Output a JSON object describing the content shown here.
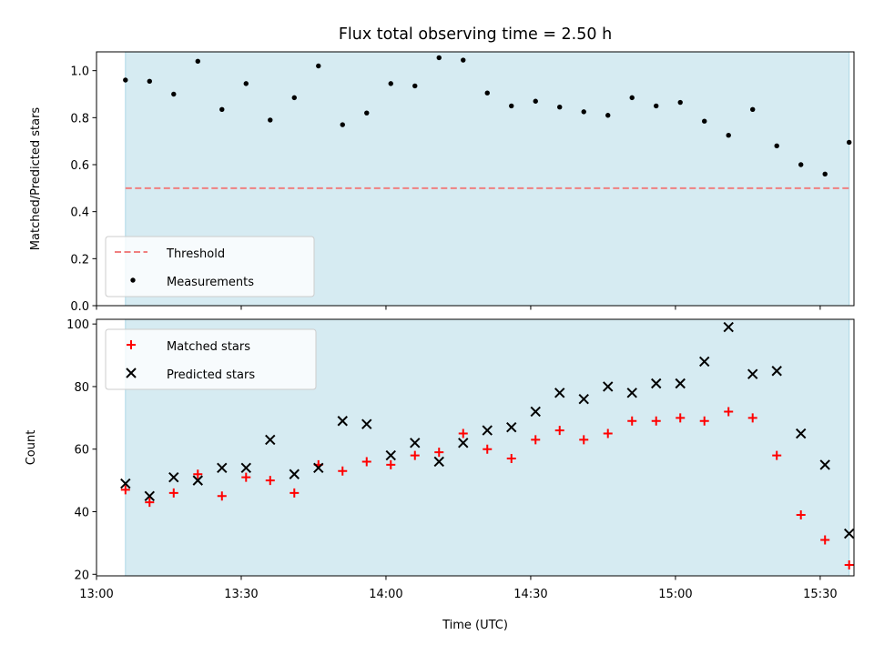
{
  "title": "Flux total observing time = 2.50 h",
  "x_tick_labels": [
    "13:00",
    "13:30",
    "14:00",
    "14:30",
    "15:00",
    "15:30"
  ],
  "colors": {
    "shade": "#add8e6",
    "threshold": "#f08080",
    "measurement": "#000000",
    "matched": "#ff0000",
    "predicted": "#000000"
  },
  "chart_data": [
    {
      "type": "scatter",
      "ylabel": "Matched/Predicted stars",
      "xlabel": "",
      "x_unit": "time (UTC)",
      "xlim": [
        "13:00",
        "15:37"
      ],
      "ylim": [
        0.0,
        1.08
      ],
      "y_tick_labels": [
        "0.0",
        "0.2",
        "0.4",
        "0.6",
        "0.8",
        "1.0"
      ],
      "shaded_span": [
        "13:06",
        "15:36"
      ],
      "legend": {
        "position": "lower-left",
        "entries": [
          "Threshold",
          "Measurements"
        ]
      },
      "threshold": {
        "name": "Threshold",
        "value": 0.5,
        "style": "dashed"
      },
      "series": [
        {
          "name": "Measurements",
          "marker": "dot",
          "x": [
            "13:06",
            "13:11",
            "13:16",
            "13:21",
            "13:26",
            "13:31",
            "13:36",
            "13:41",
            "13:46",
            "13:51",
            "13:56",
            "14:01",
            "14:06",
            "14:11",
            "14:16",
            "14:21",
            "14:26",
            "14:31",
            "14:36",
            "14:41",
            "14:46",
            "14:51",
            "14:56",
            "15:01",
            "15:06",
            "15:11",
            "15:16",
            "15:21",
            "15:26",
            "15:31",
            "15:36"
          ],
          "y": [
            0.96,
            0.955,
            0.9,
            1.04,
            0.835,
            0.945,
            0.79,
            0.885,
            1.02,
            0.77,
            0.82,
            0.945,
            0.935,
            1.055,
            1.045,
            0.905,
            0.85,
            0.87,
            0.845,
            0.825,
            0.81,
            0.885,
            0.85,
            0.865,
            0.785,
            0.725,
            0.835,
            0.68,
            0.6,
            0.56,
            0.695
          ]
        }
      ]
    },
    {
      "type": "scatter",
      "ylabel": "Count",
      "xlabel": "Time (UTC)",
      "xlim": [
        "13:00",
        "15:37"
      ],
      "ylim": [
        19.5,
        101.5
      ],
      "y_tick_labels": [
        "20",
        "40",
        "60",
        "80",
        "100"
      ],
      "shaded_span": [
        "13:06",
        "15:36"
      ],
      "legend": {
        "position": "upper-left",
        "entries": [
          "Matched stars",
          "Predicted stars"
        ]
      },
      "series": [
        {
          "name": "Matched stars",
          "marker": "plus",
          "x": [
            "13:06",
            "13:11",
            "13:16",
            "13:21",
            "13:26",
            "13:31",
            "13:36",
            "13:41",
            "13:46",
            "13:51",
            "13:56",
            "14:01",
            "14:06",
            "14:11",
            "14:16",
            "14:21",
            "14:26",
            "14:31",
            "14:36",
            "14:41",
            "14:46",
            "14:51",
            "14:56",
            "15:01",
            "15:06",
            "15:11",
            "15:16",
            "15:21",
            "15:26",
            "15:31",
            "15:36"
          ],
          "y": [
            47,
            43,
            46,
            52,
            45,
            51,
            50,
            46,
            55,
            53,
            56,
            55,
            58,
            59,
            65,
            60,
            57,
            63,
            66,
            63,
            65,
            69,
            69,
            70,
            69,
            72,
            70,
            58,
            39,
            31,
            23
          ]
        },
        {
          "name": "Predicted stars",
          "marker": "cross",
          "x": [
            "13:06",
            "13:11",
            "13:16",
            "13:21",
            "13:26",
            "13:31",
            "13:36",
            "13:41",
            "13:46",
            "13:51",
            "13:56",
            "14:01",
            "14:06",
            "14:11",
            "14:16",
            "14:21",
            "14:26",
            "14:31",
            "14:36",
            "14:41",
            "14:46",
            "14:51",
            "14:56",
            "15:01",
            "15:06",
            "15:11",
            "15:16",
            "15:21",
            "15:26",
            "15:31",
            "15:36"
          ],
          "y": [
            49,
            45,
            51,
            50,
            54,
            54,
            63,
            52,
            54,
            69,
            68,
            58,
            62,
            56,
            62,
            66,
            67,
            72,
            78,
            76,
            80,
            78,
            81,
            81,
            88,
            99,
            84,
            85,
            65,
            55,
            33
          ]
        }
      ]
    }
  ]
}
